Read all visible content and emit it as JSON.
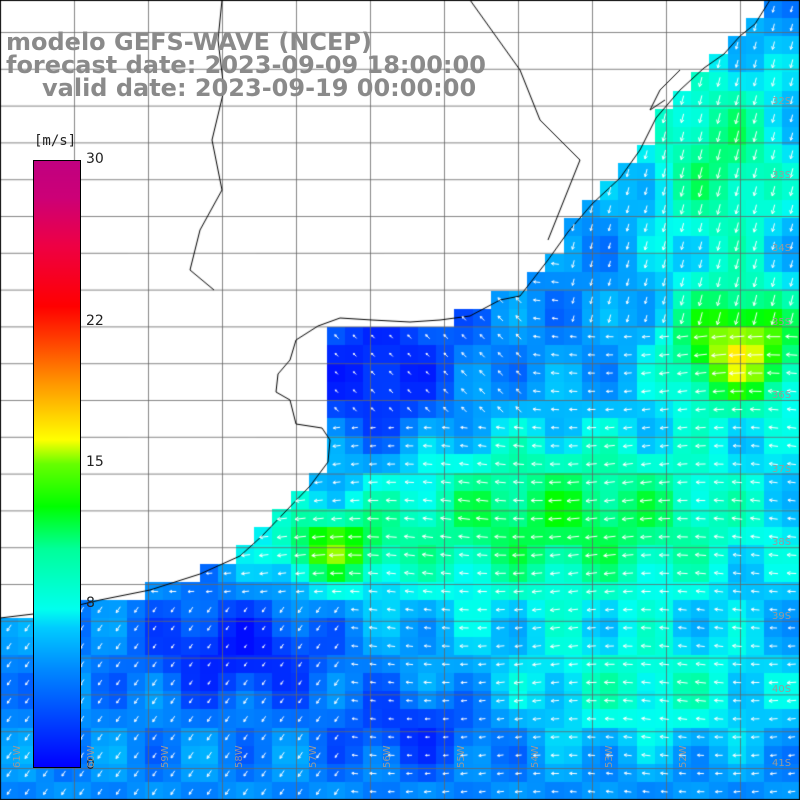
{
  "title": {
    "line1": "modelo GEFS-WAVE (NCEP)",
    "line2": "forecast date: 2023-09-09 18:00:00",
    "line3": "valid date: 2023-09-19 00:00:00"
  },
  "colorbar": {
    "units": "[m/s]",
    "labels": [
      "30",
      "22",
      "15",
      "8",
      "0"
    ],
    "values": [
      30,
      22,
      15,
      8,
      0
    ],
    "range": [
      0,
      30
    ]
  },
  "lat_labels": [
    "32S",
    "33S",
    "34S",
    "35S",
    "36S",
    "37S",
    "38S",
    "39S",
    "40S",
    "41S"
  ],
  "lon_labels": [
    "61W",
    "60W",
    "59W",
    "58W",
    "57W",
    "56W",
    "55W",
    "54W",
    "53W",
    "52W"
  ],
  "colors": {
    "land": "#ffffff",
    "grid": "#666666",
    "coast": "#000000",
    "arrows": "#ffffff",
    "title": "#8a8a8a"
  }
}
